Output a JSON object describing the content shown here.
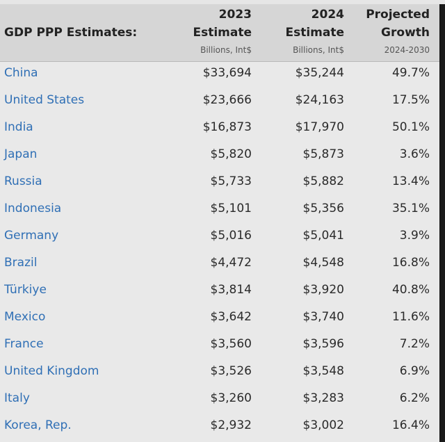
{
  "header": {
    "title": "GDP PPP Estimates:",
    "col2023": {
      "year": "2023",
      "label": "Estimate",
      "unit": "Billions, Int$"
    },
    "col2024": {
      "year": "2024",
      "label": "Estimate",
      "unit": "Billions, Int$"
    },
    "growth": {
      "line1": "Projected",
      "line2": "Growth",
      "range": "2024-2030"
    }
  },
  "rows": [
    {
      "country": "China",
      "v2023": "$33,694",
      "v2024": "$35,244",
      "growth": "49.7%"
    },
    {
      "country": "United States",
      "v2023": "$23,666",
      "v2024": "$24,163",
      "growth": "17.5%"
    },
    {
      "country": "India",
      "v2023": "$16,873",
      "v2024": "$17,970",
      "growth": "50.1%"
    },
    {
      "country": "Japan",
      "v2023": "$5,820",
      "v2024": "$5,873",
      "growth": "3.6%"
    },
    {
      "country": "Russia",
      "v2023": "$5,733",
      "v2024": "$5,882",
      "growth": "13.4%"
    },
    {
      "country": "Indonesia",
      "v2023": "$5,101",
      "v2024": "$5,356",
      "growth": "35.1%"
    },
    {
      "country": "Germany",
      "v2023": "$5,016",
      "v2024": "$5,041",
      "growth": "3.9%"
    },
    {
      "country": "Brazil",
      "v2023": "$4,472",
      "v2024": "$4,548",
      "growth": "16.8%"
    },
    {
      "country": "Türkiye",
      "v2023": "$3,814",
      "v2024": "$3,920",
      "growth": "40.8%"
    },
    {
      "country": "Mexico",
      "v2023": "$3,642",
      "v2024": "$3,740",
      "growth": "11.6%"
    },
    {
      "country": "France",
      "v2023": "$3,560",
      "v2024": "$3,596",
      "growth": "7.2%"
    },
    {
      "country": "United Kingdom",
      "v2023": "$3,526",
      "v2024": "$3,548",
      "growth": "6.9%"
    },
    {
      "country": "Italy",
      "v2023": "$3,260",
      "v2024": "$3,283",
      "growth": "6.2%"
    },
    {
      "country": "Korea, Rep.",
      "v2023": "$2,932",
      "v2024": "$3,002",
      "growth": "16.4%"
    }
  ]
}
